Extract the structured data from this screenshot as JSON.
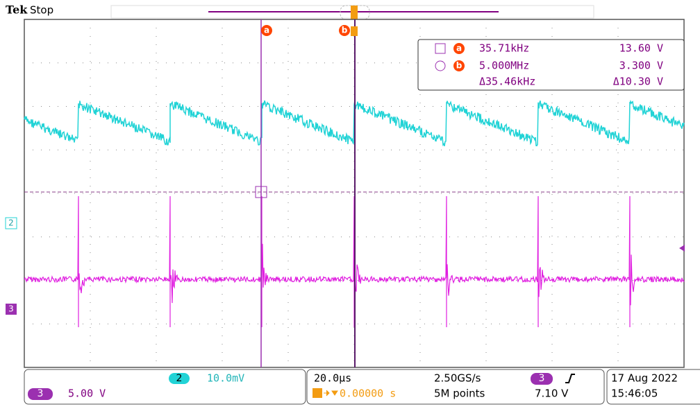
{
  "header": {
    "brand": "Tek",
    "status": "Stop"
  },
  "cursors": {
    "a": "a",
    "b": "b"
  },
  "readout": {
    "rows": [
      {
        "freq": "35.71kHz",
        "volt": "13.60 V"
      },
      {
        "freq": "5.000MHz",
        "volt": "3.300 V"
      },
      {
        "freq": "Δ35.46kHz",
        "volt": "Δ10.30 V"
      }
    ]
  },
  "channel_markers": {
    "ch2": "2",
    "ch3": "3"
  },
  "footer": {
    "ch2": {
      "label": "2",
      "scale": "10.0mV"
    },
    "ch3": {
      "label": "3",
      "scale": "5.00 V"
    },
    "horizontal": {
      "scale": "20.0µs",
      "position": "0.00000 s"
    },
    "acquisition": {
      "rate": "2.50GS/s",
      "length": "5M points"
    },
    "trigger": {
      "source": "3",
      "level": "7.10 V"
    },
    "datetime": {
      "date": "17 Aug 2022",
      "time": "15:46:05"
    }
  }
}
